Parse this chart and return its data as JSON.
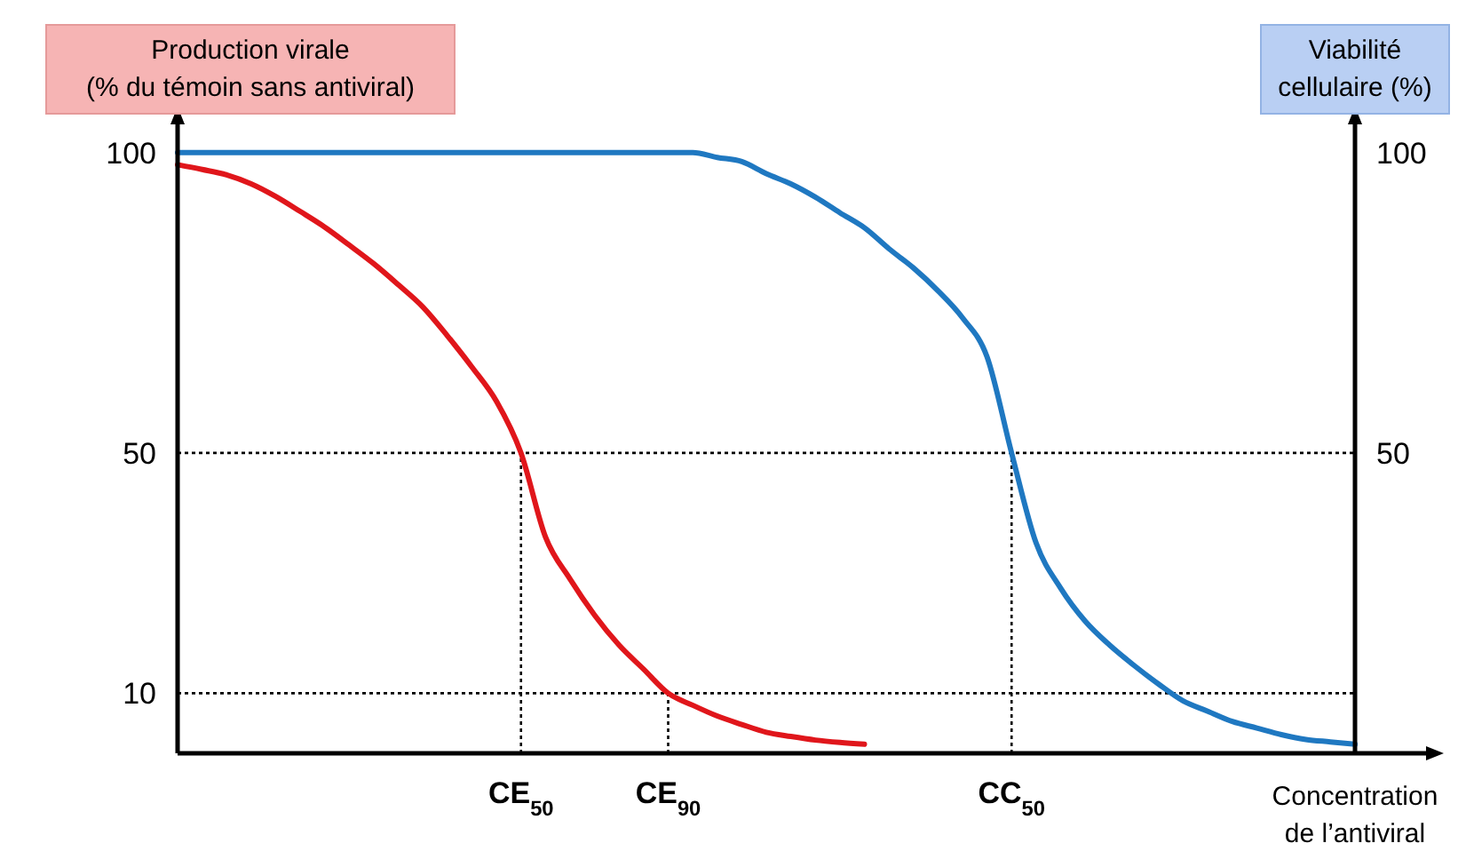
{
  "chart_data": {
    "type": "line",
    "xlabel": "Concentration de l’antiviral",
    "ylabel": "Production virale (% du témoin sans antiviral)",
    "y2label": "Viabilité cellulaire (%)",
    "categories": [
      null,
      null,
      null,
      null,
      null,
      null,
      null,
      null,
      null,
      null,
      null,
      null,
      null,
      null,
      "CE$_{50}$",
      null,
      null,
      null,
      null,
      null,
      "CE$_{90}$",
      null,
      null,
      null,
      null,
      null,
      null,
      null,
      null,
      null,
      null,
      null,
      null,
      null,
      "CC$_{50}$",
      null,
      null,
      null,
      null,
      null,
      null,
      null,
      null,
      null,
      null,
      null,
      null,
      null,
      null
    ],
    "ylim": [
      0,
      105
    ],
    "yticks": [
      10,
      50,
      100
    ],
    "y2lim": [
      0,
      105
    ],
    "y2ticks": [
      50,
      100
    ],
    "series": [
      {
        "color": "#e0161b",
        "values": [
          98,
          97.2,
          96.3,
          94.8,
          92.7,
          90.2,
          87.6,
          84.6,
          81.5,
          78,
          74.3,
          69.5,
          64.3,
          58.6,
          50,
          36,
          29,
          23,
          18,
          14,
          10,
          8,
          6.2,
          4.8,
          3.5,
          2.8,
          2.2,
          1.8,
          1.5,
          null,
          null,
          null,
          null,
          null,
          null,
          null,
          null,
          null,
          null,
          null,
          null,
          null,
          null,
          null,
          null,
          null,
          null,
          null,
          null
        ]
      },
      {
        "color": "#1f78c1",
        "axis": "y2",
        "values": [
          100,
          100,
          100,
          100,
          100,
          100,
          100,
          100,
          100,
          100,
          100,
          100,
          100,
          100,
          100,
          100,
          100,
          100,
          100,
          100,
          100,
          100,
          99.2,
          98.5,
          96.5,
          94.8,
          92.6,
          90,
          87.5,
          84,
          80.8,
          77,
          72.5,
          66,
          50,
          35,
          27.5,
          22,
          18,
          14.6,
          11.5,
          8.7,
          7,
          5.3,
          4.2,
          3.1,
          2.3,
          1.9,
          1.5
        ]
      }
    ],
    "ref_lines": [
      {
        "axis": "y",
        "value": 50,
        "line_style": "dotted"
      },
      {
        "axis": "y",
        "value": 10,
        "line_style": "dotted"
      },
      {
        "axis": "x",
        "value": "CE$_{50}$",
        "line_style": "dotted"
      },
      {
        "axis": "x",
        "value": "CE$_{90}$",
        "line_style": "dotted"
      },
      {
        "axis": "x",
        "value": "CC$_{50}$",
        "line_style": "dotted"
      }
    ],
    "grid": false,
    "line_style": "solid"
  }
}
